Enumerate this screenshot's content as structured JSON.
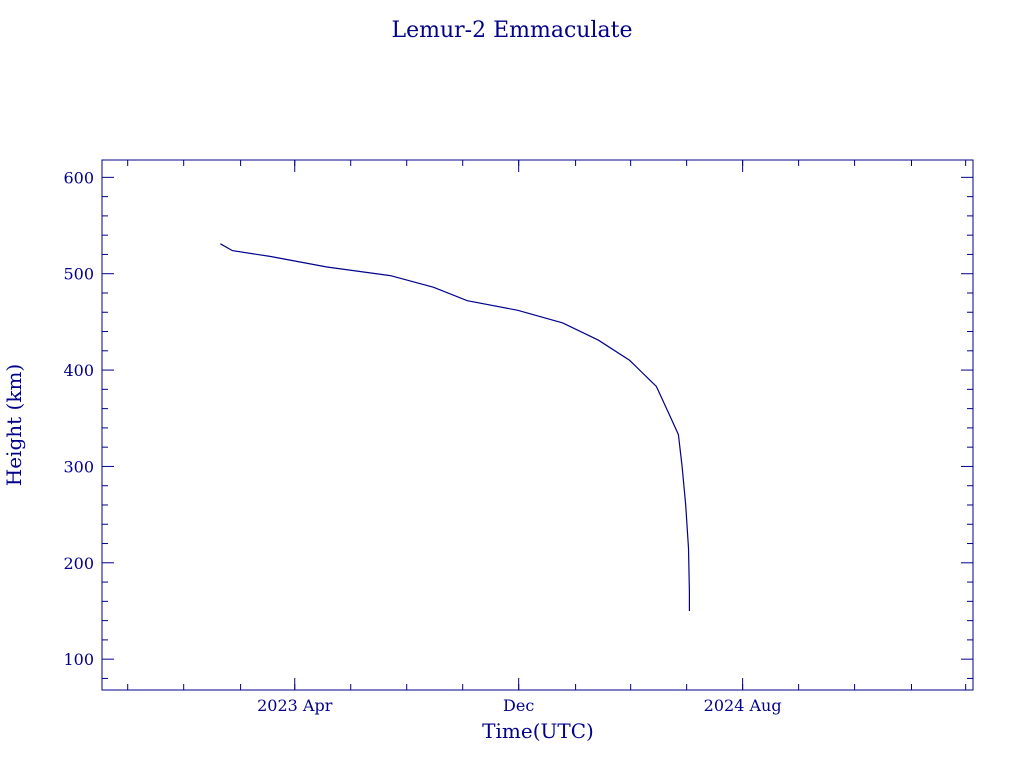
{
  "chart_data": {
    "type": "line",
    "title": "Lemur-2 Emmaculate",
    "xlabel": "Time(UTC)",
    "ylabel": "Height (km)",
    "color": "#00008b",
    "grid": false,
    "legend": "none",
    "xlim": [
      "2022-09-03",
      "2025-04-09"
    ],
    "ylim": [
      68,
      618
    ],
    "x_ticks": [
      {
        "date": "2023-04-01",
        "label": "2023 Apr"
      },
      {
        "date": "2023-12-01",
        "label": "Dec"
      },
      {
        "date": "2024-08-01",
        "label": "2024 Aug"
      }
    ],
    "y_ticks": [
      100,
      200,
      300,
      400,
      500,
      600
    ],
    "series": [
      {
        "x": [
          "2023-01-10",
          "2023-01-23",
          "2023-03-05",
          "2023-05-06",
          "2023-07-14",
          "2023-08-30",
          "2023-10-06",
          "2023-11-30",
          "2024-01-18",
          "2024-02-26",
          "2024-03-31",
          "2024-04-29",
          "2024-05-15",
          "2024-05-23",
          "2024-05-27",
          "2024-05-31",
          "2024-06-03",
          "2024-06-04",
          "2024-06-04"
        ],
        "y": [
          531,
          524,
          518,
          507,
          498,
          486,
          472,
          462,
          449,
          431,
          410,
          383,
          350,
          333,
          300,
          260,
          215,
          170,
          150
        ]
      }
    ]
  }
}
